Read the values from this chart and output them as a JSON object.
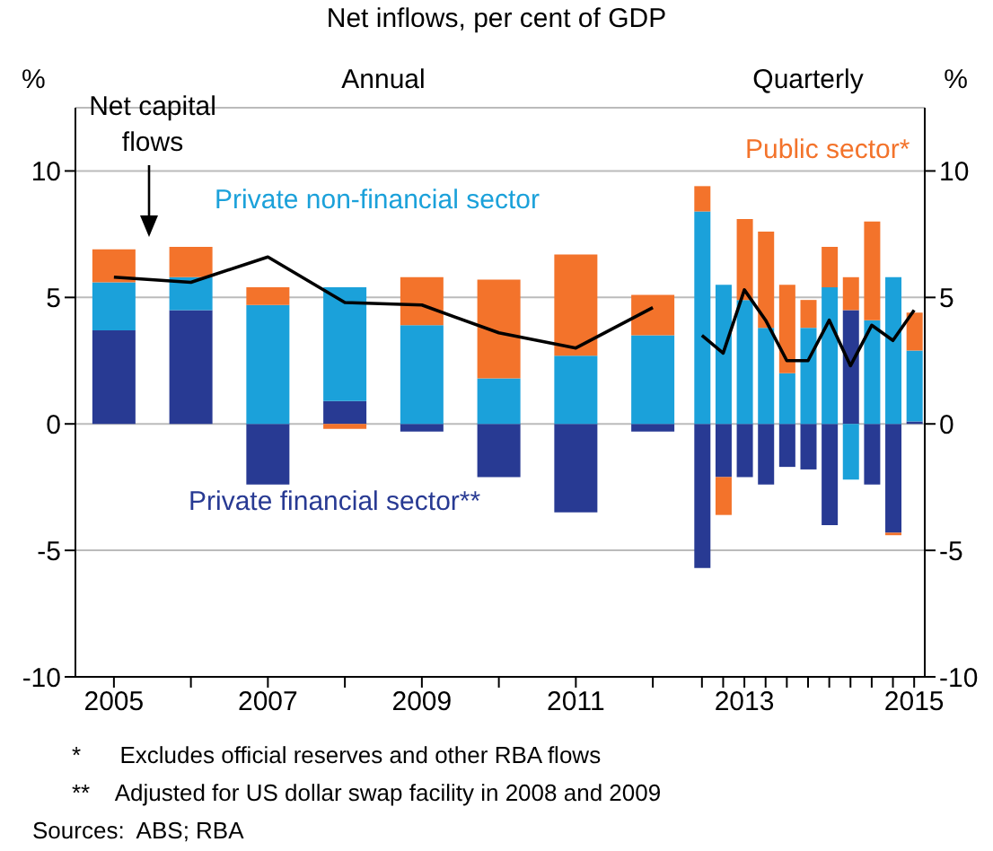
{
  "chart_data": [
    {
      "type": "bar",
      "title": "Annual",
      "subtitle": "Net inflows, per cent of GDP",
      "ylabel": "%",
      "categories": [
        "2005",
        null,
        "2007",
        null,
        "2009",
        null,
        "2011",
        null
      ],
      "stacked": true,
      "ylim": [
        -10,
        12.5
      ],
      "yticks": [
        -10,
        -5,
        0,
        5,
        10
      ],
      "grid": "y",
      "annotations": [
        "*      Excludes official reserves and other RBA flows",
        "**    Adjusted for US dollar swap facility in 2008 and 2009",
        "Sources:  ABS; RBA"
      ],
      "series": [
        {
          "name": "Private financial sector**",
          "color": "#283a93",
          "values": [
            3.7,
            4.5,
            -2.4,
            0.9,
            -0.3,
            -2.1,
            -3.5,
            -0.3
          ]
        },
        {
          "name": "Private non-financial sector",
          "color": "#1ba1da",
          "values": [
            1.9,
            1.3,
            4.7,
            4.5,
            3.9,
            1.8,
            2.7,
            3.5
          ]
        },
        {
          "color": "#f3732b",
          "values": [
            1.3,
            1.2,
            0.7,
            -0.2,
            1.9,
            3.9,
            4.0,
            1.6
          ]
        },
        {
          "name": "Net capital flows",
          "type": "line",
          "color": "#000000",
          "values": [
            5.8,
            5.6,
            6.6,
            4.8,
            4.7,
            3.6,
            3.0,
            4.6
          ]
        }
      ]
    },
    {
      "type": "bar",
      "title": "Quarterly",
      "ylabel": "%",
      "categories": [
        null,
        null,
        "2013",
        null,
        null,
        null,
        null,
        null,
        null,
        null,
        "2015"
      ],
      "stacked": true,
      "ylim": [
        -10,
        12.5
      ],
      "yticks": [
        -10,
        -5,
        0,
        5,
        10
      ],
      "grid": "y",
      "series": [
        {
          "color": "#283a93",
          "values": [
            -5.7,
            -2.1,
            -2.1,
            -2.4,
            -1.7,
            -1.8,
            -4.0,
            4.5,
            -2.4,
            -4.3,
            0.1
          ]
        },
        {
          "color": "#1ba1da",
          "values": [
            8.4,
            5.5,
            4.9,
            3.8,
            2.0,
            3.8,
            5.4,
            -2.2,
            4.1,
            5.8,
            2.8
          ]
        },
        {
          "name": "Public sector*",
          "color": "#f3732b",
          "values": [
            1.0,
            -1.5,
            3.2,
            3.8,
            3.5,
            1.1,
            1.6,
            1.3,
            3.9,
            -0.1,
            1.5
          ]
        },
        {
          "type": "line",
          "color": "#000000",
          "values": [
            3.5,
            2.8,
            5.3,
            4.1,
            2.5,
            2.5,
            4.1,
            2.3,
            3.9,
            3.3,
            4.5
          ]
        }
      ]
    }
  ]
}
